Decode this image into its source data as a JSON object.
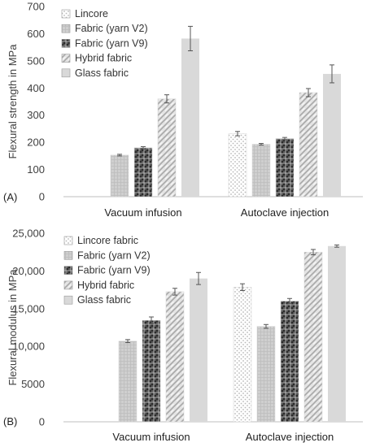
{
  "chart_data": [
    {
      "type": "bar",
      "panel_label": "(A)",
      "ylabel": "Flexural strength in MPa",
      "ylim": [
        0,
        700
      ],
      "yticks": [
        "0",
        "100",
        "200",
        "300",
        "400",
        "500",
        "600",
        "700"
      ],
      "categories": [
        "Vacuum infusion",
        "Autoclave injection"
      ],
      "legend_position": "top-left",
      "series": [
        {
          "name": "Lincore",
          "pattern": "dots",
          "values": [
            null,
            232
          ],
          "errors": [
            null,
            8
          ]
        },
        {
          "name": "Fabric (yarn V2)",
          "pattern": "grid",
          "values": [
            153,
            193
          ],
          "errors": [
            3,
            3
          ]
        },
        {
          "name": "Fabric (yarn V9)",
          "pattern": "checker",
          "values": [
            180,
            214
          ],
          "errors": [
            4,
            4
          ]
        },
        {
          "name": "Hybrid fabric",
          "pattern": "diag",
          "values": [
            360,
            383
          ],
          "errors": [
            15,
            15
          ]
        },
        {
          "name": "Glass fabric",
          "pattern": "solid",
          "values": [
            582,
            452
          ],
          "errors": [
            45,
            33
          ]
        }
      ]
    },
    {
      "type": "bar",
      "panel_label": "(B)",
      "ylabel": "Flexural modulus in MPa",
      "ylim": [
        0,
        25000
      ],
      "yticks": [
        "0",
        "5000",
        "10,000",
        "15,000",
        "20,000",
        "25,000"
      ],
      "categories": [
        "Vacuum infusion",
        "Autoclave injection"
      ],
      "legend_position": "top-left",
      "series": [
        {
          "name": "Lincore fabric",
          "pattern": "dots",
          "values": [
            null,
            17850
          ],
          "errors": [
            null,
            450
          ]
        },
        {
          "name": "Fabric (yarn V2)",
          "pattern": "grid",
          "values": [
            10700,
            12650
          ],
          "errors": [
            200,
            250
          ]
        },
        {
          "name": "Fabric (yarn V9)",
          "pattern": "checker",
          "values": [
            13450,
            16000
          ],
          "errors": [
            450,
            350
          ]
        },
        {
          "name": "Hybrid fabric",
          "pattern": "diag",
          "values": [
            17250,
            22500
          ],
          "errors": [
            450,
            350
          ]
        },
        {
          "name": "Glass fabric",
          "pattern": "solid",
          "values": [
            19000,
            23300
          ],
          "errors": [
            800,
            150
          ]
        }
      ]
    }
  ]
}
